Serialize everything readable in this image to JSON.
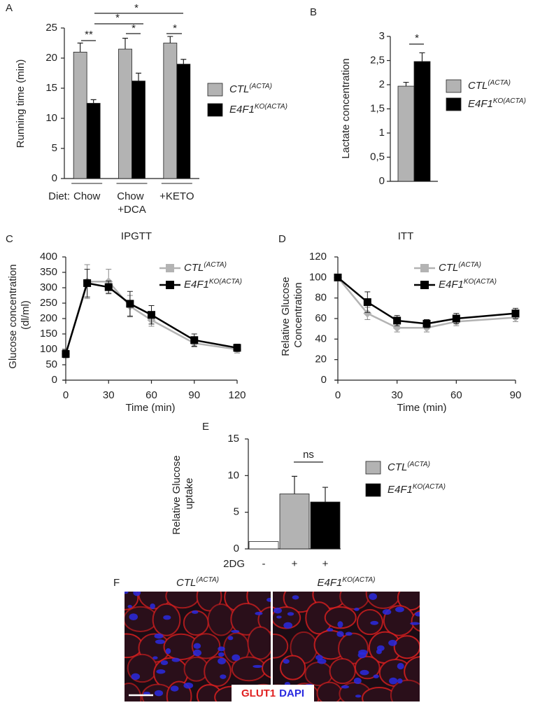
{
  "chart_data": [
    {
      "panel": "A",
      "type": "bar",
      "y_label": "Running time (min)",
      "x_label": "Diet:",
      "categories": [
        "Chow",
        "Chow +DCA",
        "+KETO"
      ],
      "series": [
        {
          "name": "CTL(ACTA)",
          "color": "#b3b3b3",
          "values": [
            21,
            21.5,
            22.5
          ],
          "errors": [
            1.5,
            1.8,
            1.1
          ]
        },
        {
          "name": "E4F1KO(ACTA)",
          "color": "#000000",
          "values": [
            12.5,
            16.2,
            19
          ],
          "errors": [
            0.6,
            1.3,
            0.8
          ]
        }
      ],
      "ylim": [
        0,
        25
      ],
      "yticks": [
        0,
        5,
        10,
        15,
        20,
        25
      ],
      "annotations": [
        "**",
        "*",
        "*",
        "*",
        "*"
      ]
    },
    {
      "panel": "B",
      "type": "bar",
      "y_label": "Lactate concentration",
      "categories": [
        null
      ],
      "series": [
        {
          "name": "CTL(ACTA)",
          "color": "#b3b3b3",
          "values": [
            1.97
          ],
          "errors": [
            0.08
          ]
        },
        {
          "name": "E4F1KO(ACTA)",
          "color": "#000000",
          "values": [
            2.48
          ],
          "errors": [
            0.18
          ]
        }
      ],
      "ylim": [
        0,
        3
      ],
      "yticks": [
        0,
        {
          "value": 0.5,
          "label": "0,5"
        },
        1,
        {
          "value": 1.5,
          "label": "1,5"
        },
        2,
        {
          "value": 2.5,
          "label": "2,5"
        },
        3
      ],
      "annotations": [
        "*"
      ]
    },
    {
      "panel": "C",
      "type": "line",
      "title": "IPGTT",
      "x_label": "Time (min)",
      "y_label": "Glucose concentration (dl/ml)",
      "x": [
        0,
        15,
        30,
        45,
        60,
        90,
        120
      ],
      "series": [
        {
          "name": "CTL(ACTA)",
          "color": "#b3b3b3",
          "values": [
            85,
            320,
            320,
            240,
            195,
            120,
            100
          ],
          "errors": [
            10,
            55,
            40,
            35,
            20,
            12,
            12
          ]
        },
        {
          "name": "E4F1KO(ACTA)",
          "color": "#000000",
          "values": [
            85,
            315,
            302,
            248,
            212,
            130,
            105
          ],
          "errors": [
            12,
            45,
            20,
            40,
            30,
            20,
            12
          ]
        }
      ],
      "xlim": [
        0,
        120
      ],
      "xticks": [
        0,
        30,
        60,
        90,
        120
      ],
      "ylim": [
        0,
        400
      ],
      "yticks": [
        0,
        50,
        100,
        150,
        200,
        250,
        300,
        350,
        400
      ]
    },
    {
      "panel": "D",
      "type": "line",
      "title": "ITT",
      "x_label": "Time (min)",
      "y_label": "Relative Glucose Concentration",
      "x": [
        0,
        15,
        30,
        45,
        60,
        90
      ],
      "series": [
        {
          "name": "CTL(ACTA)",
          "color": "#b3b3b3",
          "values": [
            100,
            65,
            51,
            51,
            57,
            61
          ],
          "errors": [
            0,
            6,
            4,
            4,
            4,
            4
          ]
        },
        {
          "name": "E4F1KO(ACTA)",
          "color": "#000000",
          "values": [
            100,
            76,
            58,
            55,
            60,
            65
          ],
          "errors": [
            0,
            10,
            5,
            4,
            5,
            5
          ]
        }
      ],
      "xlim": [
        0,
        90
      ],
      "xticks": [
        0,
        30,
        60,
        90
      ],
      "ylim": [
        0,
        120
      ],
      "yticks": [
        0,
        20,
        40,
        60,
        80,
        100,
        120
      ]
    },
    {
      "panel": "E",
      "type": "bar",
      "y_label": "Relative Glucose uptake",
      "x_label": "2DG",
      "categories": [
        "-",
        "+",
        "+"
      ],
      "values": [
        1,
        7.5,
        6.4
      ],
      "errors": [
        null,
        2.4,
        2.0
      ],
      "colors": [
        "#ffffff",
        "#b3b3b3",
        "#000000"
      ],
      "legend": [
        {
          "name": "CTL(ACTA)",
          "color": "#b3b3b3"
        },
        {
          "name": "E4F1KO(ACTA)",
          "color": "#000000"
        }
      ],
      "ylim": [
        0,
        15
      ],
      "yticks": [
        0,
        5,
        10,
        15
      ],
      "annotations": [
        "ns"
      ]
    }
  ],
  "image_panel": {
    "panel": "F",
    "columns": [
      "CTL(ACTA)",
      "E4F1KO(ACTA)"
    ],
    "stains": [
      {
        "name": "GLUT1",
        "color": "#e02020"
      },
      {
        "name": "DAPI",
        "color": "#2a2ae0"
      }
    ]
  }
}
